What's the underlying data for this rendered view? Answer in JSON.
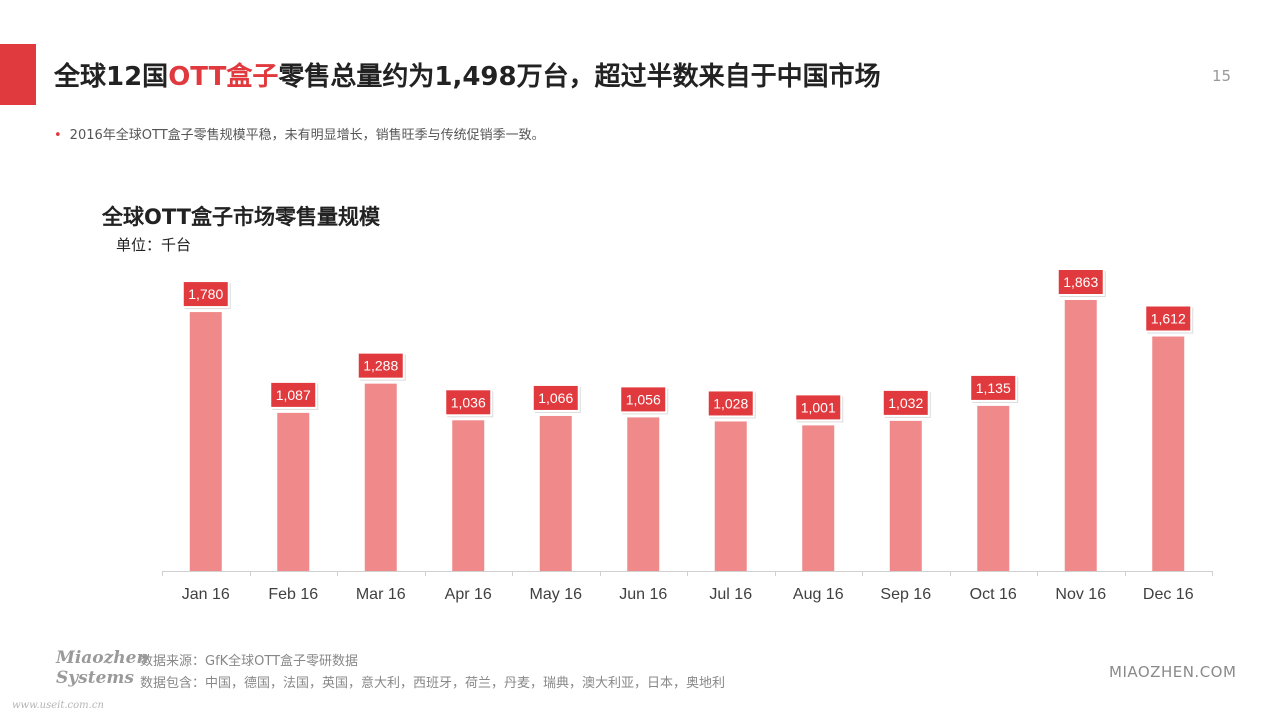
{
  "slide": {
    "title_parts": [
      "全球12国",
      "OTT盒子",
      "零售总量约为1,498万台，超过半数来自于中国市场"
    ],
    "page_number": "15",
    "bullet": "2016年全球OTT盒子零售规模平稳，未有明显增长，销售旺季与传统促销季一致。",
    "source_lines": [
      "数据来源：GfK全球OTT盒子零研数据",
      "数据包含：中国，德国，法国，英国，意大利，西班牙，荷兰，丹麦，瑞典，澳大利亚，日本，奥地利"
    ],
    "logo_lines": [
      "Miaozhen",
      "Systems"
    ],
    "watermark": "www.useit.com.cn",
    "brand": "MIAOZHEN.COM",
    "accent_color": "#e03a3e"
  },
  "chart_data": {
    "type": "bar",
    "title": "全球OTT盒子市场零售量规模",
    "unit_label": "单位：千台",
    "categories": [
      "Jan 16",
      "Feb 16",
      "Mar 16",
      "Apr 16",
      "May 16",
      "Jun 16",
      "Jul 16",
      "Aug 16",
      "Sep 16",
      "Oct 16",
      "Nov 16",
      "Dec 16"
    ],
    "values": [
      1780,
      1087,
      1288,
      1036,
      1066,
      1056,
      1028,
      1001,
      1032,
      1135,
      1863,
      1612
    ],
    "value_labels": [
      "1,780",
      "1,087",
      "1,288",
      "1,036",
      "1,066",
      "1,056",
      "1,028",
      "1,001",
      "1,032",
      "1,135",
      "1,863",
      "1,612"
    ],
    "bar_color": "#f08a8a",
    "label_color": "#e03a3e",
    "grid": false
  }
}
